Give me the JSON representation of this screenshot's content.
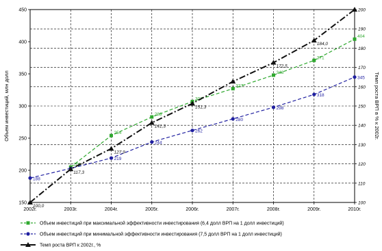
{
  "chart_data": {
    "type": "line",
    "categories": [
      "2002г.",
      "2003г.",
      "2004г.",
      "2005г.",
      "2006г.",
      "2007г.",
      "2008г.",
      "2009г.",
      "2010г."
    ],
    "ylabel": "Объем инвестиций, млн долл",
    "ylabel_right": "Темп роста ВРП в % к 2002г.",
    "ylim": [
      150,
      450
    ],
    "yticks": [
      "150",
      "200",
      "250",
      "300",
      "350",
      "400",
      "450"
    ],
    "ylim_right": [
      100,
      200
    ],
    "yticks_right": [
      "100",
      "110",
      "120",
      "130",
      "140",
      "150",
      "160",
      "170",
      "180",
      "190",
      "200"
    ],
    "grid": true,
    "legend_position": "bottom",
    "series": [
      {
        "name": "Объем инвестиций при максимальной эффективности инвестирования (6,4 долл ВРП на 1 долл инвестиций)",
        "color": "#2ea82e",
        "style": "dashed",
        "marker": "square",
        "axis": "left",
        "values": [
          null,
          205,
          254,
          283,
          307,
          327,
          348,
          371,
          404
        ],
        "labels": [
          "",
          "205",
          "254",
          "283",
          "307",
          "327",
          "348",
          "371",
          "404"
        ]
      },
      {
        "name": "Объем инвестиций при минимальной эффективности инвестирования (7,5 долл ВРП на 1 долл инвестиций)",
        "color": "#1f1fa0",
        "style": "dashed",
        "marker": "circle",
        "axis": "left",
        "values": [
          188,
          203,
          219,
          244,
          262,
          280,
          298,
          318,
          345
        ],
        "labels": [
          "188",
          "",
          "219",
          "244",
          "262",
          "280",
          "298",
          "318",
          "345"
        ]
      },
      {
        "name": "Темп роста ВРП к 2002г., %",
        "color": "#111111",
        "style": "dashdot",
        "marker": "triangle",
        "axis": "right",
        "values": [
          100,
          117.3,
          127.9,
          141.3,
          151.3,
          162.7,
          172.5,
          184.0,
          200
        ],
        "labels": [
          "100,0",
          "117,3",
          "127,9",
          "141,3",
          "151,3",
          "",
          "172,5",
          "184,0",
          ""
        ]
      }
    ]
  }
}
